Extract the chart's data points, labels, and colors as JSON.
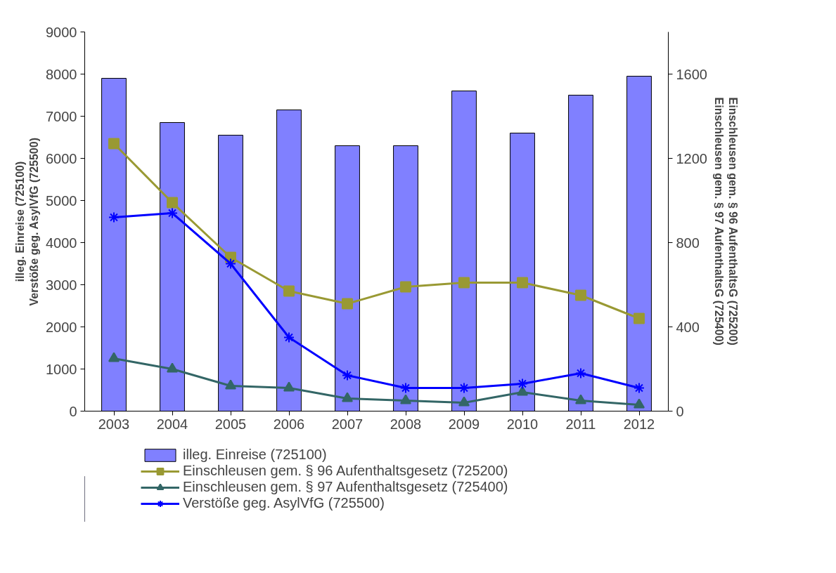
{
  "chart_data": {
    "type": "bar",
    "xlabel": null,
    "ylabel": "illeg. Einreise (725100)\nVerstöße geg. AsylVfG (725500)",
    "y2label": "Einschleusen gem. § 96 AufenthaltsG (725200)\nEinschleusen gem. § 97 AufenthaltsG (725400)",
    "categories": [
      "2003",
      "2004",
      "2005",
      "2006",
      "2007",
      "2008",
      "2009",
      "2010",
      "2011",
      "2012"
    ],
    "series": [
      {
        "name": "illeg. Einreise (725100)",
        "color": "#8080ff",
        "values": [
          7900,
          6850,
          6550,
          7150,
          6300,
          6300,
          7600,
          6600,
          7500,
          7950
        ]
      },
      {
        "name": "Einschleusen gem. § 96 Aufenthaltsgesetz (725200)",
        "type": "line",
        "axis": "y2",
        "marker": "square",
        "color": "#999933",
        "values": [
          1270,
          990,
          730,
          570,
          510,
          590,
          610,
          610,
          550,
          440
        ]
      },
      {
        "name": "Einschleusen gem. § 97 Aufenthaltsgesetz (725400)",
        "type": "line",
        "axis": "y2",
        "marker": "triangle",
        "color": "#336666",
        "values": [
          250,
          200,
          120,
          110,
          60,
          50,
          40,
          90,
          50,
          30
        ]
      },
      {
        "name": "Verstöße geg. AsylVfG (725500)",
        "type": "line",
        "marker": "cross",
        "color": "#0000ff",
        "values": [
          4600,
          4700,
          3500,
          1750,
          850,
          550,
          550,
          650,
          900,
          550
        ]
      }
    ],
    "ylim": [
      0,
      9000
    ],
    "yticks": [
      0,
      1000,
      2000,
      3000,
      4000,
      5000,
      6000,
      7000,
      8000,
      9000
    ],
    "y2lim": [
      0,
      1800
    ],
    "y2ticks": [
      0,
      400,
      800,
      1200,
      1600
    ],
    "grid": false,
    "legend": "bottom",
    "line_style": "solid"
  }
}
